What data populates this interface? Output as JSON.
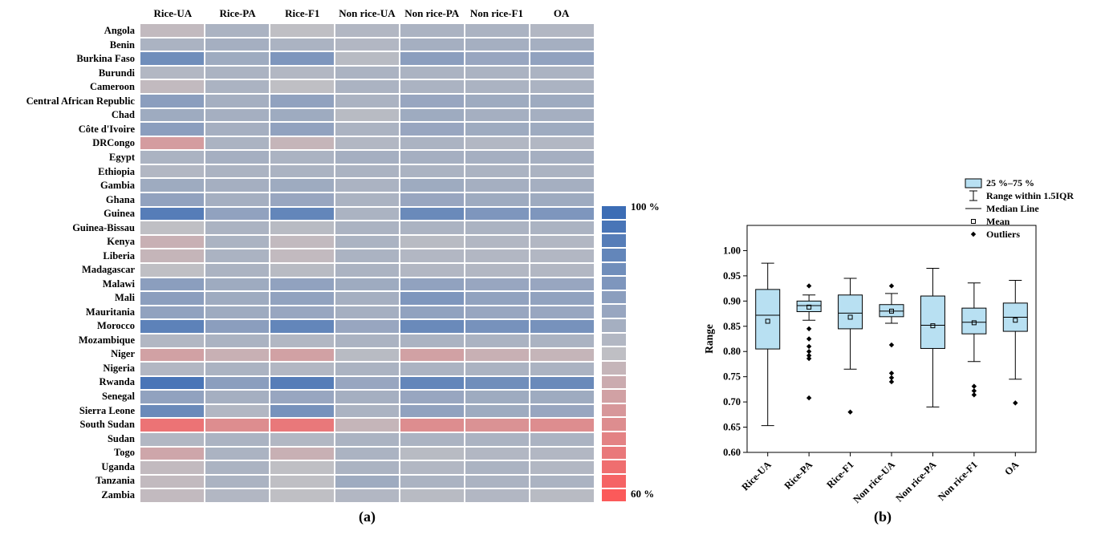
{
  "figure": {
    "caption_a": "(a)",
    "caption_b": "(b)"
  },
  "chart_data": [
    {
      "type": "heatmap",
      "panel": "a",
      "columns": [
        "Rice-UA",
        "Rice-PA",
        "Rice-F1",
        "Non rice-UA",
        "Non rice-PA",
        "Non rice-F1",
        "OA"
      ],
      "rows": [
        "Angola",
        "Benin",
        "Burkina Faso",
        "Burundi",
        "Cameroon",
        "Central African Republic",
        "Chad",
        "Côte d'Ivoire",
        "DRCongo",
        "Egypt",
        "Ethiopia",
        "Gambia",
        "Ghana",
        "Guinea",
        "Guinea-Bissau",
        "Kenya",
        "Liberia",
        "Madagascar",
        "Malawi",
        "Mali",
        "Mauritania",
        "Morocco",
        "Mozambique",
        "Niger",
        "Nigeria",
        "Rwanda",
        "Senegal",
        "Sierra Leone",
        "South Sudan",
        "Sudan",
        "Togo",
        "Uganda",
        "Tanzania",
        "Zambia"
      ],
      "value_unit": "%",
      "vmin": 60,
      "vmax": 100,
      "values": [
        [
          79,
          83,
          80,
          82,
          83,
          83,
          82
        ],
        [
          83,
          84,
          83,
          82,
          84,
          84,
          84
        ],
        [
          92,
          85,
          90,
          81,
          88,
          86,
          87
        ],
        [
          82,
          83,
          82,
          83,
          83,
          83,
          83
        ],
        [
          79,
          83,
          80,
          83,
          83,
          83,
          83
        ],
        [
          88,
          84,
          87,
          83,
          86,
          85,
          85
        ],
        [
          85,
          84,
          85,
          81,
          85,
          84,
          84
        ],
        [
          88,
          84,
          87,
          83,
          86,
          85,
          85
        ],
        [
          73,
          83,
          78,
          82,
          83,
          82,
          82
        ],
        [
          83,
          84,
          83,
          84,
          84,
          84,
          84
        ],
        [
          82,
          83,
          83,
          83,
          83,
          83,
          83
        ],
        [
          85,
          84,
          85,
          83,
          85,
          84,
          84
        ],
        [
          87,
          84,
          86,
          83,
          86,
          85,
          85
        ],
        [
          96,
          87,
          94,
          83,
          93,
          90,
          90
        ],
        [
          80,
          83,
          81,
          83,
          83,
          83,
          83
        ],
        [
          77,
          83,
          79,
          83,
          81,
          82,
          82
        ],
        [
          78,
          83,
          79,
          83,
          82,
          82,
          82
        ],
        [
          80,
          83,
          81,
          83,
          82,
          82,
          82
        ],
        [
          88,
          85,
          87,
          85,
          87,
          86,
          86
        ],
        [
          88,
          85,
          87,
          84,
          90,
          87,
          87
        ],
        [
          87,
          85,
          86,
          84,
          87,
          86,
          86
        ],
        [
          95,
          88,
          94,
          86,
          93,
          91,
          91
        ],
        [
          82,
          83,
          82,
          83,
          83,
          83,
          83
        ],
        [
          74,
          77,
          74,
          81,
          74,
          77,
          78
        ],
        [
          82,
          83,
          82,
          83,
          83,
          83,
          83
        ],
        [
          98,
          88,
          96,
          86,
          94,
          92,
          93
        ],
        [
          87,
          84,
          86,
          84,
          86,
          85,
          85
        ],
        [
          93,
          82,
          91,
          83,
          87,
          85,
          86
        ],
        [
          65,
          70,
          66,
          78,
          70,
          71,
          70
        ],
        [
          82,
          83,
          82,
          83,
          83,
          83,
          83
        ],
        [
          75,
          83,
          77,
          83,
          81,
          82,
          82
        ],
        [
          79,
          83,
          80,
          83,
          82,
          83,
          82
        ],
        [
          79,
          83,
          80,
          85,
          83,
          83,
          83
        ],
        [
          79,
          82,
          80,
          82,
          81,
          82,
          81
        ]
      ],
      "colorbar": {
        "top_label": "100 %",
        "bottom_label": "60 %",
        "segments": 21
      },
      "colors": {
        "high": "#3c6db5",
        "mid": "#bfbfc4",
        "low": "#fb5a5a"
      }
    },
    {
      "type": "box",
      "panel": "b",
      "ylabel": "Range",
      "ylim": [
        0.6,
        1.05
      ],
      "yticks": [
        "0.60",
        "0.65",
        "0.70",
        "0.75",
        "0.80",
        "0.85",
        "0.90",
        "0.95",
        "1.00"
      ],
      "categories": [
        "Rice-UA",
        "Rice-PA",
        "Rice-F1",
        "Non rice-UA",
        "Non rice-PA",
        "Non rice-F1",
        "OA"
      ],
      "box_fill": "#b8e0f2",
      "legend": [
        {
          "icon": "box",
          "label": "25 %–75 %"
        },
        {
          "icon": "whisker",
          "label": "Range within 1.5IQR"
        },
        {
          "icon": "median-line",
          "label": "Median Line"
        },
        {
          "icon": "mean-square",
          "label": "Mean"
        },
        {
          "icon": "outlier-diamond",
          "label": "Outliers"
        }
      ],
      "boxes": [
        {
          "category": "Rice-UA",
          "whisker_low": 0.653,
          "q1": 0.805,
          "median": 0.872,
          "q3": 0.923,
          "whisker_high": 0.975,
          "mean": 0.86,
          "outliers": []
        },
        {
          "category": "Rice-PA",
          "whisker_low": 0.862,
          "q1": 0.879,
          "median": 0.891,
          "q3": 0.9,
          "whisker_high": 0.912,
          "mean": 0.888,
          "outliers": [
            0.93,
            0.845,
            0.825,
            0.81,
            0.8,
            0.792,
            0.786,
            0.708
          ]
        },
        {
          "category": "Rice-F1",
          "whisker_low": 0.765,
          "q1": 0.845,
          "median": 0.876,
          "q3": 0.912,
          "whisker_high": 0.945,
          "mean": 0.868,
          "outliers": [
            0.68
          ]
        },
        {
          "category": "Non rice-UA",
          "whisker_low": 0.856,
          "q1": 0.869,
          "median": 0.88,
          "q3": 0.893,
          "whisker_high": 0.915,
          "mean": 0.88,
          "outliers": [
            0.93,
            0.813,
            0.757,
            0.748,
            0.74
          ]
        },
        {
          "category": "Non rice-PA",
          "whisker_low": 0.69,
          "q1": 0.806,
          "median": 0.852,
          "q3": 0.91,
          "whisker_high": 0.965,
          "mean": 0.851,
          "outliers": []
        },
        {
          "category": "Non rice-F1",
          "whisker_low": 0.78,
          "q1": 0.835,
          "median": 0.858,
          "q3": 0.886,
          "whisker_high": 0.936,
          "mean": 0.857,
          "outliers": [
            0.731,
            0.722,
            0.714
          ]
        },
        {
          "category": "OA",
          "whisker_low": 0.745,
          "q1": 0.84,
          "median": 0.868,
          "q3": 0.896,
          "whisker_high": 0.941,
          "mean": 0.862,
          "outliers": [
            0.698
          ]
        }
      ]
    }
  ]
}
